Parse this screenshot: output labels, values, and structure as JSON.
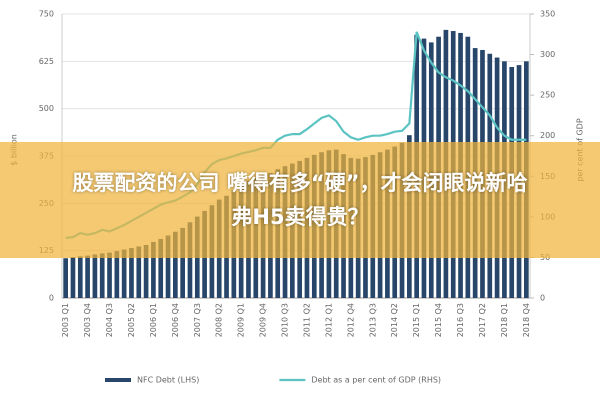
{
  "chart_data": {
    "type": "bar-line",
    "y_label": "$ billion",
    "y2_label": "per cent of GDP",
    "categories": [
      "2003 Q1",
      null,
      null,
      "2003 Q4",
      null,
      null,
      "2004 Q3",
      null,
      null,
      "2005 Q2",
      null,
      null,
      "2006 Q1",
      null,
      null,
      "2006 Q4",
      null,
      null,
      "2007 Q3",
      null,
      null,
      "2008 Q2",
      null,
      null,
      "2009 Q1",
      null,
      null,
      "2009 Q4",
      null,
      null,
      "2010 Q3",
      null,
      null,
      "2011 Q2",
      null,
      null,
      "2012 Q1",
      null,
      null,
      "2012 Q4",
      null,
      null,
      "2013 Q3",
      null,
      null,
      "2014 Q2",
      null,
      null,
      "2015 Q1",
      null,
      null,
      "2015 Q4",
      null,
      null,
      "2016 Q3",
      null,
      null,
      "2017 Q2",
      null,
      null,
      "2018 Q1",
      null,
      null,
      "2018 Q4"
    ],
    "series": [
      {
        "name": "NFC Debt (LHS)",
        "type": "bar",
        "color": "#27466a",
        "values": [
          105,
          108,
          110,
          112,
          115,
          118,
          120,
          124,
          128,
          132,
          136,
          140,
          148,
          156,
          165,
          175,
          185,
          200,
          215,
          230,
          245,
          260,
          270,
          285,
          300,
          310,
          318,
          325,
          330,
          340,
          348,
          355,
          362,
          370,
          378,
          385,
          390,
          392,
          380,
          370,
          368,
          372,
          378,
          385,
          392,
          400,
          410,
          430,
          695,
          685,
          675,
          690,
          708,
          705,
          700,
          690,
          660,
          655,
          645,
          635,
          625,
          610,
          615,
          625
        ]
      },
      {
        "name": "Debt as a per cent of GDP (RHS)",
        "type": "line",
        "axis": "y2",
        "color": "#5cc3c3",
        "values": [
          74,
          75,
          80,
          78,
          80,
          84,
          82,
          86,
          90,
          95,
          100,
          105,
          110,
          115,
          118,
          120,
          125,
          130,
          140,
          155,
          165,
          170,
          172,
          175,
          178,
          180,
          182,
          185,
          185,
          195,
          200,
          202,
          202,
          208,
          215,
          222,
          225,
          218,
          205,
          198,
          195,
          198,
          200,
          200,
          202,
          205,
          206,
          215,
          328,
          305,
          290,
          278,
          272,
          268,
          262,
          255,
          245,
          235,
          225,
          210,
          200,
          195,
          195,
          195
        ]
      }
    ],
    "ylim": [
      0,
      750
    ],
    "yticks": [
      0,
      125,
      250,
      375,
      500,
      625,
      750
    ],
    "y2lim": [
      0,
      350
    ],
    "y2ticks": [
      0,
      50,
      100,
      150,
      200,
      250,
      300,
      350
    ],
    "grid": true,
    "legend": "bottom"
  },
  "overlay_text": [
    "股票配资的公司 嘴得有多“硬”，才会闭眼说新哈",
    "弗H5卖得贵？"
  ]
}
